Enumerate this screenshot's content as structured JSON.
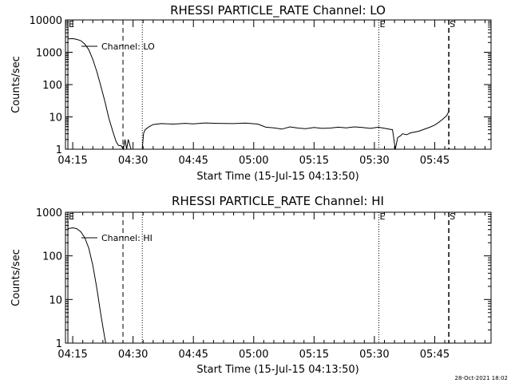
{
  "footer_timestamp": "28-Oct-2021 18:02",
  "axis_color": "#000000",
  "chart_data": [
    {
      "type": "line",
      "title": "RHESSI PARTICLE_RATE Channel: LO",
      "xlabel": "Start Time (15-Jul-15 04:13:50)",
      "ylabel": "Counts/sec",
      "yscale": "log",
      "ylim": [
        1,
        10000
      ],
      "xlim_min": [
        -1.8,
        104
      ],
      "x_tick_labels": [
        "04:15",
        "04:30",
        "04:45",
        "05:00",
        "05:15",
        "05:30",
        "05:45"
      ],
      "x_tick_values": [
        0,
        15,
        30,
        45,
        60,
        75,
        90
      ],
      "y_tick_labels": [
        "1",
        "10",
        "100",
        "1000",
        "10000"
      ],
      "y_tick_values": [
        1,
        10,
        100,
        1000,
        10000
      ],
      "legend": "Channel: LO",
      "markers": [
        {
          "label": "E",
          "x": -1.2,
          "style": "solid"
        },
        {
          "label": "",
          "x": 12.5,
          "style": "dashed"
        },
        {
          "label": "",
          "x": 17.3,
          "style": "dotted"
        },
        {
          "label": "E",
          "x": 76.1,
          "style": "dotted"
        },
        {
          "label": "S",
          "x": 93.5,
          "style": "dashed"
        }
      ],
      "series": [
        {
          "name": "Channel: LO",
          "x": [
            -1.2,
            0,
            1,
            2,
            3,
            4,
            5,
            6,
            7,
            8,
            9,
            10,
            10.8,
            11.4,
            12,
            12.6,
            13,
            13.4,
            13.8,
            14.5,
            15.5,
            16.5,
            17.3,
            17.6,
            18,
            19,
            20,
            22,
            25,
            28,
            30,
            33,
            36,
            40,
            43,
            46,
            48,
            50,
            52,
            54,
            56,
            58,
            60,
            62,
            64,
            66,
            68,
            70,
            72,
            74,
            76,
            78,
            79.5,
            80.2,
            80.8,
            81.5,
            82,
            83,
            84,
            86,
            88,
            89,
            90,
            91,
            92,
            93,
            93.5
          ],
          "y": [
            2600,
            2650,
            2500,
            2300,
            1800,
            1200,
            600,
            250,
            90,
            30,
            9,
            3.5,
            1.7,
            1.3,
            1.3,
            1,
            2,
            1,
            2,
            1,
            1,
            1,
            1,
            3,
            4,
            5,
            5.8,
            6.2,
            6.0,
            6.3,
            6.1,
            6.5,
            6.3,
            6.2,
            6.4,
            6.0,
            4.8,
            4.6,
            4.2,
            4.9,
            4.5,
            4.3,
            4.7,
            4.4,
            4.5,
            4.8,
            4.6,
            4.9,
            4.7,
            4.4,
            4.8,
            4.3,
            4.0,
            1,
            2.3,
            2.6,
            3.0,
            2.8,
            3.2,
            3.6,
            4.4,
            4.9,
            5.6,
            6.8,
            8.5,
            11,
            15
          ]
        }
      ]
    },
    {
      "type": "line",
      "title": "RHESSI PARTICLE_RATE Channel: HI",
      "xlabel": "Start Time (15-Jul-15 04:13:50)",
      "ylabel": "Counts/sec",
      "yscale": "log",
      "ylim": [
        1,
        1000
      ],
      "xlim_min": [
        -1.8,
        104
      ],
      "x_tick_labels": [
        "04:15",
        "04:30",
        "04:45",
        "05:00",
        "05:15",
        "05:30",
        "05:45"
      ],
      "x_tick_values": [
        0,
        15,
        30,
        45,
        60,
        75,
        90
      ],
      "y_tick_labels": [
        "1",
        "10",
        "100",
        "1000"
      ],
      "y_tick_values": [
        1,
        10,
        100,
        1000
      ],
      "legend": "Channel: HI",
      "markers": [
        {
          "label": "E",
          "x": -1.2,
          "style": "solid"
        },
        {
          "label": "",
          "x": 12.5,
          "style": "dashed"
        },
        {
          "label": "",
          "x": 17.3,
          "style": "dotted"
        },
        {
          "label": "E",
          "x": 76.1,
          "style": "dotted"
        },
        {
          "label": "S",
          "x": 93.5,
          "style": "dashed"
        }
      ],
      "series": [
        {
          "name": "Channel: HI",
          "x": [
            -1.2,
            0,
            1,
            2,
            3,
            4,
            5,
            6,
            7,
            7.8,
            8.2
          ],
          "y": [
            420,
            440,
            420,
            360,
            260,
            150,
            60,
            18,
            4.5,
            1.6,
            1
          ]
        }
      ]
    }
  ]
}
